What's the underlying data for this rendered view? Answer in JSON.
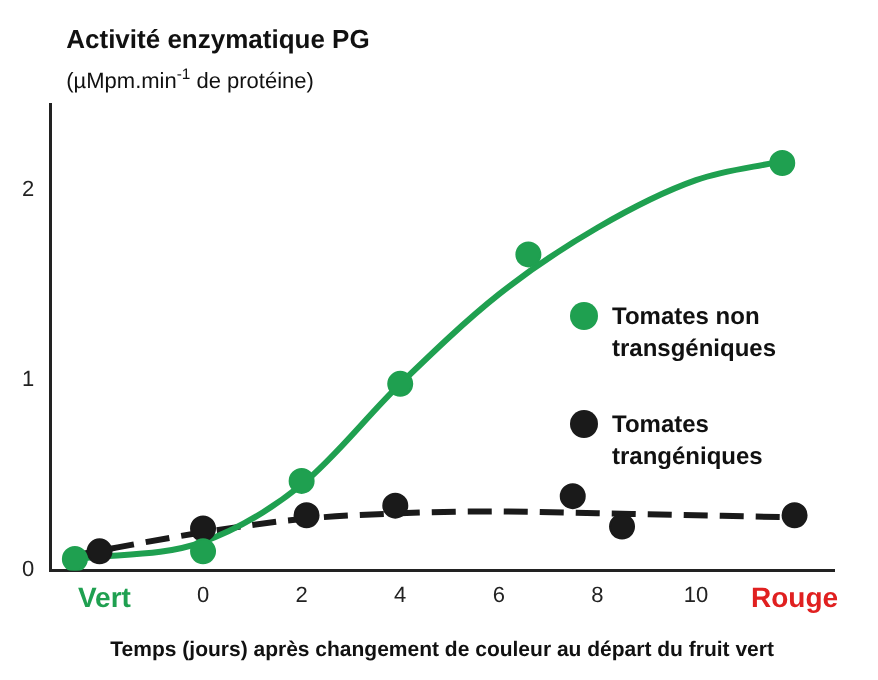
{
  "chart_data": {
    "type": "scatter",
    "title": "Activité enzymatique PG",
    "subtitle": "(µMpm.min$^{-1}$ de protéine)",
    "xlabel": "Temps (jours) après changement de couleur au départ du fruit vert",
    "xlim": [
      -3.1,
      12.8
    ],
    "xticks": [
      {
        "value": -2,
        "label": "Vert"
      },
      0,
      2,
      4,
      6,
      8,
      10,
      {
        "value": 12,
        "label": "Rouge"
      }
    ],
    "ylim": [
      0,
      2.45
    ],
    "yticks": [
      0,
      1,
      2
    ],
    "grid": false,
    "legend": "right",
    "series": [
      {
        "name": "Tomates non transgéniques",
        "marker": "circle",
        "color": "#1fa050",
        "x": [
          -2.6,
          0,
          2,
          4,
          6.6,
          11.75
        ],
        "values": [
          0.06,
          0.1,
          0.47,
          0.98,
          1.66,
          2.14
        ]
      },
      {
        "name": "Tomates trangéniques",
        "marker": "circle",
        "color": "#1a1a1a",
        "x": [
          -2.1,
          0,
          2.1,
          3.9,
          7.5,
          8.5,
          12
        ],
        "values": [
          0.1,
          0.22,
          0.29,
          0.34,
          0.39,
          0.23,
          0.29
        ]
      },
      {
        "type": "line",
        "marker": "none",
        "line_style": "solid",
        "color": "#1fa050",
        "x": [
          -2.6,
          0,
          2,
          4,
          6,
          8,
          10,
          11.75
        ],
        "values": [
          0.06,
          0.15,
          0.45,
          0.98,
          1.45,
          1.8,
          2.05,
          2.15
        ]
      },
      {
        "type": "line",
        "marker": "none",
        "line_style": "dashed",
        "color": "#1a1a1a",
        "x": [
          -2.6,
          0,
          2,
          4,
          6,
          8,
          11.75
        ],
        "values": [
          0.08,
          0.2,
          0.27,
          0.3,
          0.31,
          0.3,
          0.28
        ]
      }
    ]
  }
}
